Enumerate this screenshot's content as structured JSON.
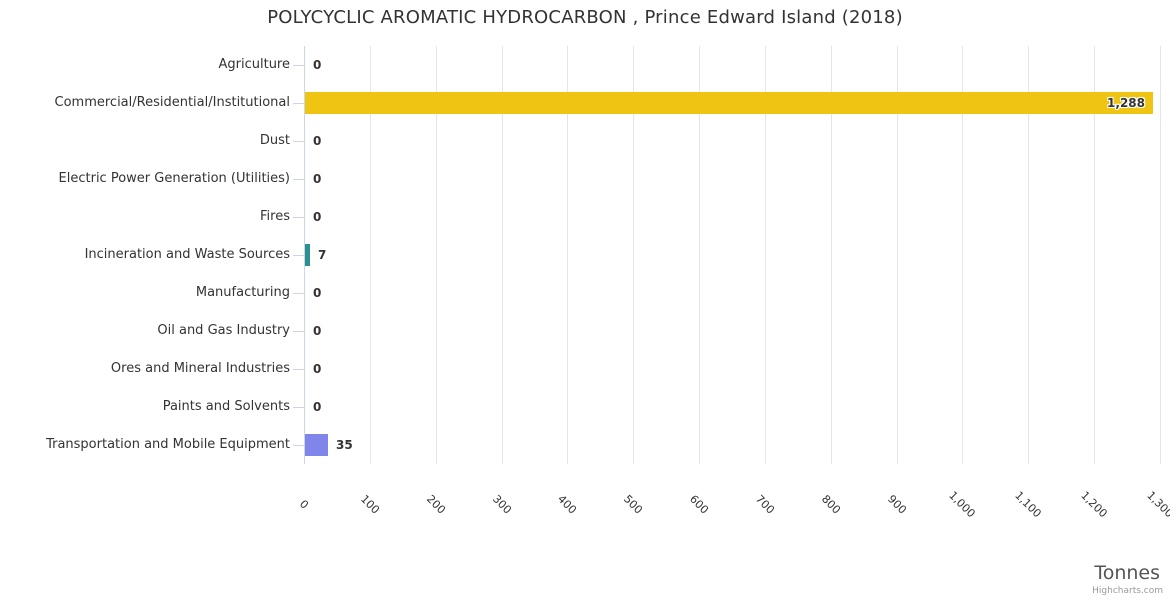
{
  "chart_data": {
    "type": "bar",
    "orientation": "horizontal",
    "title": "POLYCYCLIC AROMATIC HYDROCARBON , Prince Edward Island (2018)",
    "categories": [
      "Agriculture",
      "Commercial/Residential/Institutional",
      "Dust",
      "Electric Power Generation (Utilities)",
      "Fires",
      "Incineration and Waste Sources",
      "Manufacturing",
      "Oil and Gas Industry",
      "Ores and Mineral Industries",
      "Paints and Solvents",
      "Transportation and Mobile Equipment"
    ],
    "values": [
      0,
      1288,
      0,
      0,
      0,
      7,
      0,
      0,
      0,
      0,
      35
    ],
    "value_labels": [
      "0",
      "1,288",
      "0",
      "0",
      "0",
      "7",
      "0",
      "0",
      "0",
      "0",
      "35"
    ],
    "point_colors": [
      null,
      "#f0c413",
      null,
      null,
      null,
      "#2b908f",
      null,
      null,
      null,
      null,
      "#8085e9"
    ],
    "xlabel": "Tonnes",
    "xlim": [
      0,
      1300
    ],
    "xticks": [
      0,
      100,
      200,
      300,
      400,
      500,
      600,
      700,
      800,
      900,
      1000,
      1100,
      1200,
      1300
    ],
    "xtick_labels": [
      "0",
      "100",
      "200",
      "300",
      "400",
      "500",
      "600",
      "700",
      "800",
      "900",
      "1,000",
      "1,100",
      "1,200",
      "1,300"
    ],
    "grid": true,
    "legend": "none",
    "credit": "Highcharts.com"
  },
  "ui_colors": {
    "grid": "#e6e6e6",
    "axis": "#ccd6eb",
    "text": "#333333",
    "axis_title": "#555555",
    "credit": "#999999"
  }
}
